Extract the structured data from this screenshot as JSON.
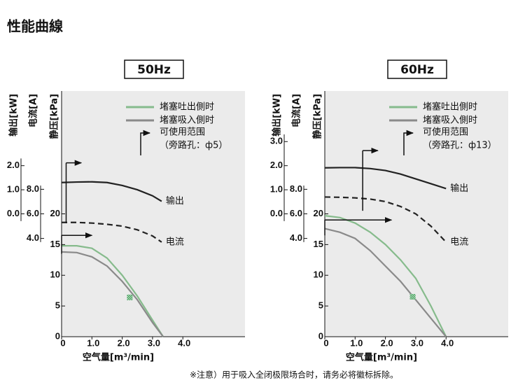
{
  "title": "性能曲線",
  "note": "※注意）用于吸入全闭极限场合时，请务必将徽标拆除。",
  "chart_data": [
    {
      "type": "line",
      "title": "50Hz",
      "xlabel": "空气量[m³/min]",
      "ylabel": "静压[kPa]",
      "y2label": "电流[A]",
      "y3label": "输出[kW]",
      "xlim": [
        0,
        6.05
      ],
      "xticks": [
        0,
        {
          "value": 1,
          "label": "1.0"
        },
        {
          "value": 2,
          "label": "2.0"
        },
        {
          "value": 3,
          "label": "3.0"
        },
        {
          "value": 4,
          "label": "4.0"
        }
      ],
      "ylim": [
        0,
        40
      ],
      "yticks": [
        0,
        5,
        10,
        15,
        20
      ],
      "y2lim": [
        -4,
        16
      ],
      "y2ticks": [
        {
          "value": 4,
          "label": "4.0"
        },
        {
          "value": 6,
          "label": "6.0"
        },
        {
          "value": 8,
          "label": "8.0"
        }
      ],
      "y3lim": [
        -5.1,
        5.1
      ],
      "y3ticks": [
        {
          "value": 0,
          "label": "0.0"
        },
        {
          "value": 1,
          "label": "1.0"
        },
        {
          "value": 2,
          "label": "2.0"
        }
      ],
      "series": [
        {
          "name": "堵塞吐出側时",
          "color": "#86bb8c",
          "axis": "y",
          "legend": true,
          "x": [
            0,
            0.5,
            1,
            1.5,
            2,
            2.5,
            3,
            3.35
          ],
          "values": [
            14.8,
            14.8,
            14.4,
            12.8,
            10,
            6.6,
            2.7,
            0
          ]
        },
        {
          "name": "堵塞吸入側时",
          "color": "#8a8a8a",
          "axis": "y",
          "legend": true,
          "x": [
            0,
            0.5,
            1,
            1.5,
            2,
            2.5,
            3,
            3.35
          ],
          "values": [
            13.8,
            13.7,
            13,
            11.5,
            9,
            6,
            2.3,
            0
          ]
        },
        {
          "name": "输出",
          "color": "#222222",
          "axis": "y3",
          "legend": false,
          "x": [
            0,
            0.5,
            1,
            1.5,
            2,
            2.5,
            3,
            3.3
          ],
          "values": [
            1.3,
            1.32,
            1.33,
            1.3,
            1.18,
            1.0,
            0.75,
            0.52
          ]
        },
        {
          "name": "电流",
          "color": "#222222",
          "axis": "y2",
          "legend": false,
          "dash": true,
          "x": [
            0,
            0.5,
            1,
            1.5,
            2,
            2.5,
            3,
            3.3
          ],
          "values": [
            5.3,
            5.3,
            5.25,
            5.15,
            5.0,
            4.7,
            4.2,
            3.7
          ]
        }
      ],
      "range_label": [
        "可使用范围",
        "（旁路孔：ф5）"
      ],
      "range_flags": [
        {
          "x": 0.15,
          "from": 18.5,
          "to": 28.3,
          "arrow_to_x": 0.65
        },
        {
          "x": 0,
          "from": 13.5,
          "to": 16.5,
          "arrow_to_x": 1.0
        }
      ],
      "marker": {
        "x": 2.25,
        "y": 6.4
      }
    },
    {
      "type": "line",
      "title": "60Hz",
      "xlabel": "空气量[m³/min]",
      "ylabel": "静压[kPa]",
      "y2label": "电流[A]",
      "y3label": "输出[kW]",
      "xlim": [
        0,
        6.05
      ],
      "xticks": [
        0,
        {
          "value": 1,
          "label": "1.0"
        },
        {
          "value": 2,
          "label": "2.0"
        },
        {
          "value": 3,
          "label": "3.0"
        },
        {
          "value": 4,
          "label": "4.0"
        }
      ],
      "ylim": [
        0,
        40
      ],
      "yticks": [
        0,
        5,
        10,
        15,
        20
      ],
      "y2lim": [
        -4,
        16
      ],
      "y2ticks": [
        {
          "value": 4,
          "label": "4.0"
        },
        {
          "value": 6,
          "label": "6.0"
        },
        {
          "value": 8,
          "label": "8.0"
        }
      ],
      "y3lim": [
        -5.1,
        5.1
      ],
      "y3ticks": [
        {
          "value": 0,
          "label": "0.0"
        },
        {
          "value": 1,
          "label": "1.0"
        },
        {
          "value": 2,
          "label": "2.0"
        },
        {
          "value": 3,
          "label": "3.0"
        }
      ],
      "series": [
        {
          "name": "堵塞吐出側时",
          "color": "#86bb8c",
          "axis": "y",
          "legend": true,
          "x": [
            0,
            0.5,
            1,
            1.5,
            2,
            2.5,
            3,
            3.5,
            4
          ],
          "values": [
            19.7,
            19.4,
            18.5,
            17,
            15,
            12.5,
            9.5,
            5,
            0
          ]
        },
        {
          "name": "堵塞吸入側时",
          "color": "#8a8a8a",
          "axis": "y",
          "legend": true,
          "x": [
            0,
            0.5,
            1,
            1.5,
            2,
            2.5,
            3,
            3.5,
            4
          ],
          "values": [
            17.6,
            17,
            16,
            14,
            11.5,
            9,
            6,
            3,
            0
          ]
        },
        {
          "name": "输出",
          "color": "#222222",
          "axis": "y3",
          "legend": false,
          "x": [
            0,
            0.5,
            1,
            1.5,
            2,
            2.5,
            3,
            3.5,
            4
          ],
          "values": [
            1.91,
            1.92,
            1.92,
            1.88,
            1.8,
            1.65,
            1.45,
            1.25,
            1.05
          ]
        },
        {
          "name": "电流",
          "color": "#222222",
          "axis": "y2",
          "legend": false,
          "dash": true,
          "x": [
            0,
            0.5,
            1,
            1.5,
            2,
            2.5,
            3,
            3.5,
            4
          ],
          "values": [
            7.37,
            7.35,
            7.3,
            7.2,
            7.0,
            6.6,
            6.0,
            5.0,
            3.7
          ]
        }
      ],
      "range_label": [
        "可使用范围",
        "（旁路孔：ф13）"
      ],
      "range_flags": [
        {
          "x": 1.25,
          "from": 20.5,
          "to": 30.3,
          "arrow_to_x": 1.75
        },
        {
          "x": 0,
          "from": 16.5,
          "to": 19,
          "arrow_to_x": 2.2
        }
      ],
      "marker": {
        "x": 2.9,
        "y": 6.5
      }
    }
  ]
}
